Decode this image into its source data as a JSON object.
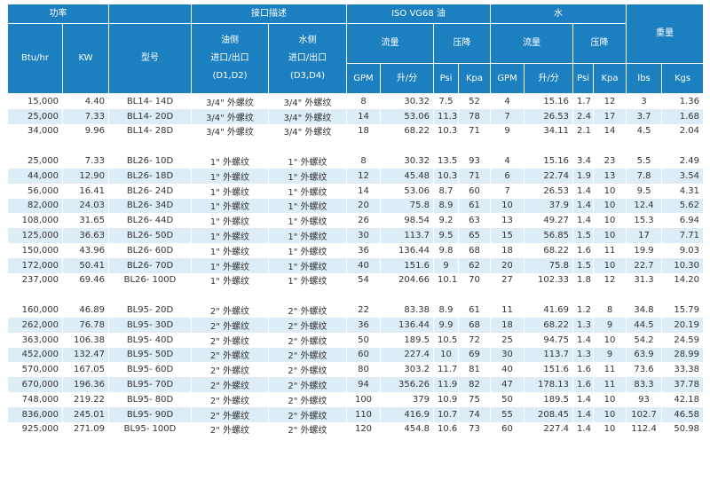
{
  "header": {
    "power": "功率",
    "interface": "接口描述",
    "oil": "ISO VG68 油",
    "water": "水",
    "weight": "重量",
    "btu": "Btu/hr",
    "kw": "KW",
    "model": "型号",
    "oil_side": [
      "油侧",
      "进口/出口",
      "(D1,D2)"
    ],
    "water_side": [
      "水侧",
      "进口/出口",
      "(D3,D4)"
    ],
    "oil_flow": "流量",
    "oil_drop": "压降",
    "water_flow": "流量",
    "water_drop": "压降",
    "oil_units": [
      "GPM",
      "升/分",
      "Psi",
      "Kpa"
    ],
    "water_units": [
      "GPM",
      "升/分",
      "Psi",
      "Kpa"
    ],
    "weight_units": [
      "lbs",
      "Kgs"
    ]
  },
  "groups": [
    {
      "rows": [
        [
          "15,000",
          "4.40",
          "BL14- 14D",
          "3/4\" 外螺纹",
          "3/4\" 外螺纹",
          "8",
          "30.32",
          "7.5",
          "52",
          "4",
          "15.16",
          "1.7",
          "12",
          "3",
          "1.36"
        ],
        [
          "25,000",
          "7.33",
          "BL14- 20D",
          "3/4\" 外螺纹",
          "3/4\" 外螺纹",
          "14",
          "53.06",
          "11.3",
          "78",
          "7",
          "26.53",
          "2.4",
          "17",
          "3.7",
          "1.68"
        ],
        [
          "34,000",
          "9.96",
          "BL14- 28D",
          "3/4\" 外螺纹",
          "3/4\" 外螺纹",
          "18",
          "68.22",
          "10.3",
          "71",
          "9",
          "34.11",
          "2.1",
          "14",
          "4.5",
          "2.04"
        ]
      ]
    },
    {
      "rows": [
        [
          "25,000",
          "7.33",
          "BL26- 10D",
          "1\" 外螺纹",
          "1\" 外螺纹",
          "8",
          "30.32",
          "13.5",
          "93",
          "4",
          "15.16",
          "3.4",
          "23",
          "5.5",
          "2.49"
        ],
        [
          "44,000",
          "12.90",
          "BL26- 18D",
          "1\" 外螺纹",
          "1\" 外螺纹",
          "12",
          "45.48",
          "10.3",
          "71",
          "6",
          "22.74",
          "1.9",
          "13",
          "7.8",
          "3.54"
        ],
        [
          "56,000",
          "16.41",
          "BL26- 24D",
          "1\" 外螺纹",
          "1\" 外螺纹",
          "14",
          "53.06",
          "8.7",
          "60",
          "7",
          "26.53",
          "1.4",
          "10",
          "9.5",
          "4.31"
        ],
        [
          "82,000",
          "24.03",
          "BL26- 34D",
          "1\" 外螺纹",
          "1\" 外螺纹",
          "20",
          "75.8",
          "8.9",
          "61",
          "10",
          "37.9",
          "1.4",
          "10",
          "12.4",
          "5.62"
        ],
        [
          "108,000",
          "31.65",
          "BL26- 44D",
          "1\" 外螺纹",
          "1\" 外螺纹",
          "26",
          "98.54",
          "9.2",
          "63",
          "13",
          "49.27",
          "1.4",
          "10",
          "15.3",
          "6.94"
        ],
        [
          "125,000",
          "36.63",
          "BL26- 50D",
          "1\" 外螺纹",
          "1\" 外螺纹",
          "30",
          "113.7",
          "9.5",
          "65",
          "15",
          "56.85",
          "1.5",
          "10",
          "17",
          "7.71"
        ],
        [
          "150,000",
          "43.96",
          "BL26- 60D",
          "1\" 外螺纹",
          "1\" 外螺纹",
          "36",
          "136.44",
          "9.8",
          "68",
          "18",
          "68.22",
          "1.6",
          "11",
          "19.9",
          "9.03"
        ],
        [
          "172,000",
          "50.41",
          "BL26- 70D",
          "1\" 外螺纹",
          "1\" 外螺纹",
          "40",
          "151.6",
          "9",
          "62",
          "20",
          "75.8",
          "1.5",
          "10",
          "22.7",
          "10.30"
        ],
        [
          "237,000",
          "69.46",
          "BL26- 100D",
          "1\" 外螺纹",
          "1\" 外螺纹",
          "54",
          "204.66",
          "10.1",
          "70",
          "27",
          "102.33",
          "1.8",
          "12",
          "31.3",
          "14.20"
        ]
      ]
    },
    {
      "rows": [
        [
          "160,000",
          "46.89",
          "BL95- 20D",
          "2\" 外螺纹",
          "2\" 外螺纹",
          "22",
          "83.38",
          "8.9",
          "61",
          "11",
          "41.69",
          "1.2",
          "8",
          "34.8",
          "15.79"
        ],
        [
          "262,000",
          "76.78",
          "BL95- 30D",
          "2\" 外螺纹",
          "2\" 外螺纹",
          "36",
          "136.44",
          "9.9",
          "68",
          "18",
          "68.22",
          "1.3",
          "9",
          "44.5",
          "20.19"
        ],
        [
          "363,000",
          "106.38",
          "BL95- 40D",
          "2\" 外螺纹",
          "2\" 外螺纹",
          "50",
          "189.5",
          "10.5",
          "72",
          "25",
          "94.75",
          "1.4",
          "10",
          "54.2",
          "24.59"
        ],
        [
          "452,000",
          "132.47",
          "BL95- 50D",
          "2\" 外螺纹",
          "2\" 外螺纹",
          "60",
          "227.4",
          "10",
          "69",
          "30",
          "113.7",
          "1.3",
          "9",
          "63.9",
          "28.99"
        ],
        [
          "570,000",
          "167.05",
          "BL95- 60D",
          "2\" 外螺纹",
          "2\" 外螺纹",
          "80",
          "303.2",
          "11.7",
          "81",
          "40",
          "151.6",
          "1.6",
          "11",
          "73.6",
          "33.38"
        ],
        [
          "670,000",
          "196.36",
          "BL95- 70D",
          "2\" 外螺纹",
          "2\" 外螺纹",
          "94",
          "356.26",
          "11.9",
          "82",
          "47",
          "178.13",
          "1.6",
          "11",
          "83.3",
          "37.78"
        ],
        [
          "748,000",
          "219.22",
          "BL95- 80D",
          "2\" 外螺纹",
          "2\" 外螺纹",
          "100",
          "379",
          "10.9",
          "75",
          "50",
          "189.5",
          "1.4",
          "10",
          "93",
          "42.18"
        ],
        [
          "836,000",
          "245.01",
          "BL95- 90D",
          "2\" 外螺纹",
          "2\" 外螺纹",
          "110",
          "416.9",
          "10.7",
          "74",
          "55",
          "208.45",
          "1.4",
          "10",
          "102.7",
          "46.58"
        ],
        [
          "925,000",
          "271.09",
          "BL95- 100D",
          "2\" 外螺纹",
          "2\" 外螺纹",
          "120",
          "454.8",
          "10.6",
          "73",
          "60",
          "227.4",
          "1.4",
          "10",
          "112.4",
          "50.98"
        ]
      ]
    }
  ]
}
